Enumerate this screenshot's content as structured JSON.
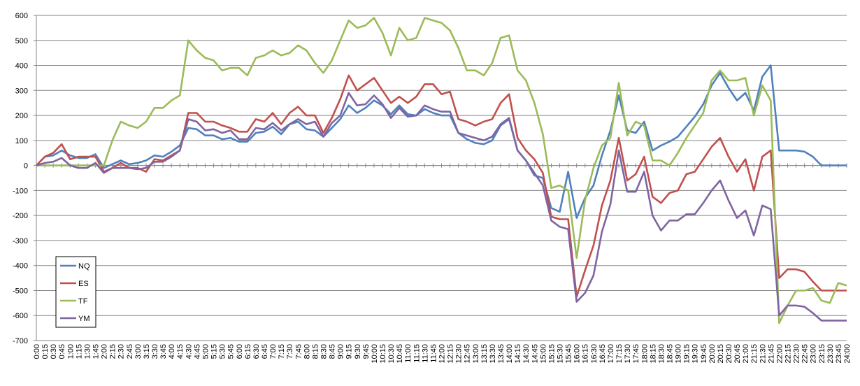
{
  "chart_data": {
    "type": "line",
    "title": "",
    "xlabel": "",
    "ylabel": "",
    "ylim": [
      -700,
      600
    ],
    "yticks": [
      600,
      500,
      400,
      300,
      200,
      100,
      0,
      -100,
      -200,
      -300,
      -400,
      -500,
      -600,
      -700
    ],
    "ytick_labels": [
      "600",
      "500",
      "400",
      "300",
      "200",
      "100",
      "0",
      "-100",
      "-200",
      "-300",
      "-400",
      "-500",
      "-600",
      "-700"
    ],
    "grid": "horizontal",
    "legend_position": "bottom-left",
    "xtick_labels": [
      "0:00",
      "0:15",
      "0:30",
      "0:45",
      "1:00",
      "1:15",
      "1:30",
      "1:45",
      "2:00",
      "2:15",
      "2:30",
      "2:45",
      "3:00",
      "3:15",
      "3:30",
      "3:45",
      "4:00",
      "4:15",
      "4:30",
      "4:45",
      "5:00",
      "5:15",
      "5:30",
      "5:45",
      "6:00",
      "6:15",
      "6:30",
      "6:45",
      "7:00",
      "7:15",
      "7:30",
      "7:45",
      "8:00",
      "8:15",
      "8:30",
      "8:45",
      "9:00",
      "9:15",
      "9:30",
      "9:45",
      "10:00",
      "10:15",
      "10:30",
      "10:45",
      "11:00",
      "11:15",
      "11:30",
      "11:45",
      "12:00",
      "12:15",
      "12:30",
      "12:45",
      "13:00",
      "13:15",
      "13:30",
      "13:45",
      "14:00",
      "14:15",
      "14:30",
      "14:45",
      "15:00",
      "15:15",
      "15:30",
      "15:45",
      "16:00",
      "16:15",
      "16:30",
      "16:45",
      "17:00",
      "17:15",
      "17:30",
      "17:45",
      "18:00",
      "18:15",
      "18:30",
      "18:45",
      "19:00",
      "19:15",
      "19:30",
      "19:45",
      "20:00",
      "20:15",
      "20:30",
      "20:45",
      "21:00",
      "21:15",
      "21:30",
      "21:45",
      "22:00",
      "22:15",
      "22:30",
      "22:45",
      "23:00",
      "23:15",
      "23:30",
      "23:45",
      "24:00"
    ],
    "series": [
      {
        "name": "NQ",
        "color": "#4F81BD",
        "values": [
          0,
          35,
          40,
          60,
          40,
          30,
          30,
          45,
          -10,
          5,
          20,
          5,
          10,
          20,
          40,
          35,
          55,
          80,
          150,
          145,
          120,
          120,
          105,
          110,
          95,
          95,
          130,
          135,
          155,
          125,
          165,
          175,
          145,
          140,
          115,
          150,
          185,
          240,
          210,
          230,
          260,
          240,
          205,
          240,
          205,
          200,
          225,
          210,
          200,
          200,
          130,
          105,
          90,
          85,
          100,
          160,
          185,
          60,
          20,
          -40,
          -50,
          -170,
          -185,
          -25,
          -210,
          -130,
          -80,
          40,
          140,
          280,
          140,
          130,
          175,
          60,
          80,
          95,
          115,
          155,
          195,
          245,
          320,
          370,
          310,
          260,
          290,
          220,
          355,
          400,
          60,
          60,
          60,
          55,
          35,
          0,
          0,
          0,
          0
        ]
      },
      {
        "name": "ES",
        "color": "#C0504D",
        "values": [
          0,
          35,
          50,
          85,
          25,
          35,
          35,
          35,
          -25,
          -10,
          10,
          -10,
          -10,
          -25,
          25,
          20,
          40,
          60,
          210,
          210,
          175,
          175,
          160,
          150,
          135,
          135,
          185,
          175,
          210,
          165,
          210,
          235,
          200,
          200,
          130,
          190,
          265,
          360,
          300,
          325,
          350,
          300,
          250,
          275,
          250,
          275,
          325,
          325,
          285,
          295,
          185,
          175,
          160,
          175,
          185,
          250,
          285,
          110,
          60,
          25,
          -30,
          -205,
          -215,
          -215,
          -525,
          -420,
          -320,
          -160,
          -60,
          110,
          -60,
          -35,
          35,
          -125,
          -150,
          -110,
          -100,
          -35,
          -25,
          25,
          75,
          110,
          35,
          -25,
          25,
          -100,
          35,
          60,
          -450,
          -415,
          -415,
          -425,
          -465,
          -500,
          -500,
          -500,
          -500
        ]
      },
      {
        "name": "TF",
        "color": "#9BBB59",
        "values": [
          0,
          0,
          0,
          0,
          0,
          0,
          0,
          0,
          0,
          100,
          175,
          160,
          150,
          175,
          230,
          230,
          260,
          280,
          500,
          460,
          430,
          420,
          380,
          390,
          390,
          360,
          430,
          440,
          460,
          440,
          450,
          480,
          460,
          410,
          370,
          420,
          500,
          580,
          550,
          560,
          590,
          530,
          440,
          550,
          500,
          510,
          590,
          580,
          570,
          540,
          470,
          380,
          380,
          360,
          410,
          510,
          520,
          380,
          340,
          250,
          125,
          -90,
          -80,
          -100,
          -370,
          -140,
          -10,
          80,
          110,
          330,
          120,
          175,
          160,
          20,
          20,
          0,
          50,
          110,
          160,
          210,
          340,
          380,
          340,
          340,
          350,
          200,
          320,
          260,
          -630,
          -560,
          -500,
          -500,
          -490,
          -540,
          -550,
          -470,
          -480
        ]
      },
      {
        "name": "YM",
        "color": "#8064A2",
        "values": [
          0,
          10,
          15,
          30,
          0,
          -10,
          -10,
          10,
          -30,
          -10,
          -10,
          -10,
          -15,
          -10,
          15,
          15,
          35,
          60,
          185,
          175,
          140,
          145,
          130,
          140,
          105,
          105,
          150,
          145,
          170,
          140,
          165,
          185,
          165,
          175,
          115,
          170,
          200,
          290,
          240,
          245,
          280,
          245,
          190,
          230,
          195,
          200,
          240,
          225,
          215,
          215,
          130,
          120,
          110,
          100,
          115,
          165,
          190,
          60,
          20,
          -30,
          -80,
          -220,
          -245,
          -255,
          -545,
          -510,
          -440,
          -265,
          -155,
          60,
          -105,
          -105,
          -25,
          -200,
          -260,
          -220,
          -220,
          -195,
          -195,
          -150,
          -100,
          -60,
          -140,
          -210,
          -180,
          -280,
          -160,
          -175,
          -600,
          -560,
          -560,
          -565,
          -590,
          -620,
          -620,
          -620,
          -620
        ]
      }
    ]
  }
}
